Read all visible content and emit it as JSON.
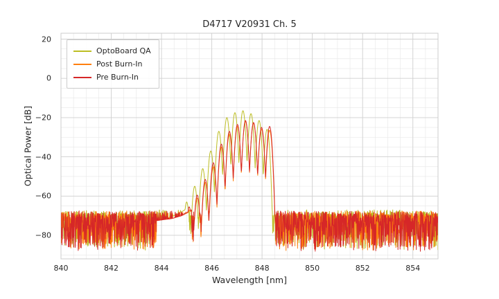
{
  "figure": {
    "background": "#ffffff"
  },
  "chart_data": {
    "type": "line",
    "title": "D4717 V20931 Ch. 5",
    "xlabel": "Wavelength [nm]",
    "ylabel": "Optical Power [dB]",
    "xlim": [
      840,
      855
    ],
    "ylim": [
      -92,
      23
    ],
    "xticks": [
      840,
      842,
      844,
      846,
      848,
      850,
      852,
      854
    ],
    "xtick_labels": [
      "840",
      "842",
      "844",
      "846",
      "848",
      "850",
      "852",
      "854"
    ],
    "yticks": [
      20,
      0,
      -20,
      -40,
      -60,
      -80
    ],
    "ytick_labels": [
      "20",
      "0",
      "−20",
      "−40",
      "−60",
      "−80"
    ],
    "x_minor_step": 0.5,
    "y_minor_step": 5,
    "grid": true,
    "grid_major_color": "#d0d0d0",
    "grid_minor_color": "#e6e6e6",
    "frame_color": "#cccccc",
    "text_color": "#262626",
    "legend_position": "upper left",
    "noise": {
      "floor": -70.5,
      "up": 3,
      "down": 18
    },
    "mode_half_width": 0.16,
    "mode_depth": 26,
    "series": [
      {
        "name": "OptoBoard QA",
        "color": "#bcbd22",
        "seed": 11,
        "floor_offset": 0.5,
        "shoulder": [
          [
            843.6,
            -72.5
          ],
          [
            844.2,
            -71.5
          ],
          [
            844.6,
            -69.5
          ],
          [
            845.0,
            -66.5
          ]
        ],
        "modes": [
          [
            845.0,
            -63
          ],
          [
            845.32,
            -55
          ],
          [
            845.64,
            -46
          ],
          [
            845.96,
            -37
          ],
          [
            846.28,
            -27
          ],
          [
            846.6,
            -20
          ],
          [
            846.92,
            -17.5
          ],
          [
            847.24,
            -16.5
          ],
          [
            847.56,
            -18
          ],
          [
            847.88,
            -21.5
          ],
          [
            848.2,
            -26
          ]
        ]
      },
      {
        "name": "Post Burn-In",
        "color": "#ff7f0e",
        "seed": 22,
        "floor_offset": 0,
        "shoulder": [
          [
            843.8,
            -72.5
          ],
          [
            844.4,
            -71.5
          ],
          [
            844.8,
            -70.0
          ],
          [
            845.2,
            -67.5
          ]
        ],
        "modes": [
          [
            845.1,
            -67
          ],
          [
            845.42,
            -61
          ],
          [
            845.74,
            -53
          ],
          [
            846.06,
            -45
          ],
          [
            846.38,
            -35
          ],
          [
            846.7,
            -28.5
          ],
          [
            847.02,
            -24.5
          ],
          [
            847.34,
            -22
          ],
          [
            847.66,
            -23
          ],
          [
            847.98,
            -26
          ],
          [
            848.3,
            -26.5
          ]
        ]
      },
      {
        "name": "Pre Burn-In",
        "color": "#d62728",
        "seed": 33,
        "floor_offset": 0,
        "shoulder": [
          [
            843.8,
            -72.5
          ],
          [
            844.4,
            -71.5
          ],
          [
            844.8,
            -70.0
          ],
          [
            845.2,
            -67.0
          ]
        ],
        "modes": [
          [
            845.1,
            -65.5
          ],
          [
            845.42,
            -59.5
          ],
          [
            845.74,
            -51.5
          ],
          [
            846.06,
            -43
          ],
          [
            846.38,
            -33.5
          ],
          [
            846.7,
            -27
          ],
          [
            847.02,
            -23.5
          ],
          [
            847.34,
            -21.5
          ],
          [
            847.66,
            -22.5
          ],
          [
            847.98,
            -25
          ],
          [
            848.3,
            -24.5
          ]
        ]
      }
    ]
  }
}
